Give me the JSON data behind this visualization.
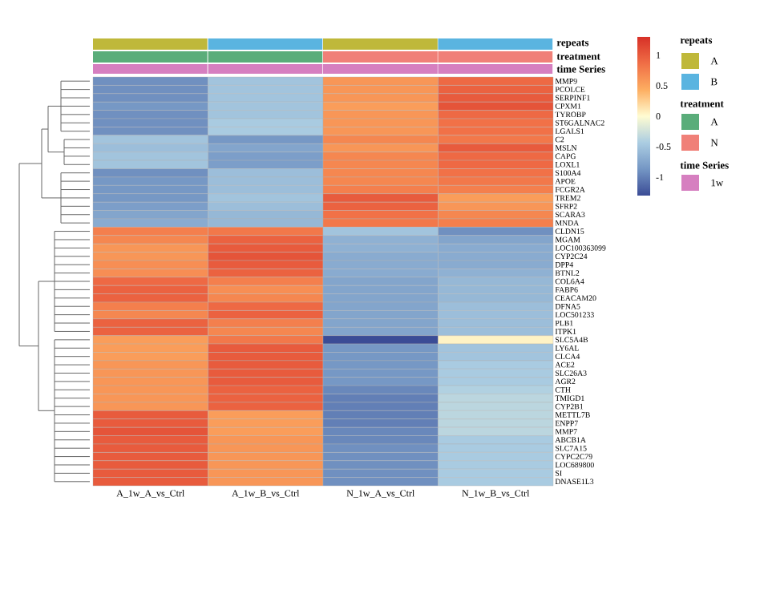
{
  "chart_data": {
    "type": "heatmap",
    "categories": [
      "A_1w_A_vs_Ctrl",
      "A_1w_B_vs_Ctrl",
      "N_1w_A_vs_Ctrl",
      "N_1w_B_vs_Ctrl"
    ],
    "y_categories": [
      "MMP9",
      "PCOLCE",
      "SERPINF1",
      "CPXM1",
      "TYROBP",
      "ST6GALNAC2",
      "LGALS1",
      "C2",
      "MSLN",
      "CAPG",
      "LOXL1",
      "S100A4",
      "APOE",
      "FCGR2A",
      "TREM2",
      "SFRP2",
      "SCARA3",
      "MNDA",
      "CLDN15",
      "MGAM",
      "LOC100363099",
      "CYP2C24",
      "DPP4",
      "BTNL2",
      "COL6A4",
      "FABP6",
      "CEACAM20",
      "DFNA5",
      "LOC501233",
      "PLB1",
      "ITPK1",
      "SLC5A4B",
      "LY6AL",
      "CLCA4",
      "ACE2",
      "SLC26A3",
      "AGR2",
      "CTH",
      "TMIGD1",
      "CYP2B1",
      "METTL7B",
      "ENPP7",
      "MMP7",
      "ABCB1A",
      "SLC7A15",
      "CYPC2C79",
      "LOC689800",
      "SI",
      "DNASE1L3"
    ],
    "cells": [
      [
        -0.9,
        -0.5,
        0.6,
        0.9
      ],
      [
        -0.9,
        -0.5,
        0.6,
        0.95
      ],
      [
        -0.9,
        -0.5,
        0.6,
        1.0
      ],
      [
        -0.85,
        -0.5,
        0.55,
        1.05
      ],
      [
        -0.9,
        -0.5,
        0.6,
        0.9
      ],
      [
        -0.9,
        -0.45,
        0.6,
        0.85
      ],
      [
        -0.9,
        -0.45,
        0.6,
        0.85
      ],
      [
        -0.5,
        -0.85,
        0.7,
        0.8
      ],
      [
        -0.55,
        -0.75,
        0.6,
        1.0
      ],
      [
        -0.5,
        -0.8,
        0.7,
        0.9
      ],
      [
        -0.5,
        -0.8,
        0.7,
        0.9
      ],
      [
        -0.9,
        -0.55,
        0.7,
        0.85
      ],
      [
        -0.85,
        -0.55,
        0.7,
        0.8
      ],
      [
        -0.85,
        -0.55,
        0.75,
        0.75
      ],
      [
        -0.85,
        -0.5,
        1.0,
        0.55
      ],
      [
        -0.8,
        -0.55,
        0.95,
        0.6
      ],
      [
        -0.75,
        -0.6,
        0.85,
        0.7
      ],
      [
        -0.7,
        -0.6,
        0.8,
        0.75
      ],
      [
        0.75,
        0.8,
        -0.5,
        -0.9
      ],
      [
        0.7,
        0.95,
        -0.65,
        -0.75
      ],
      [
        0.6,
        1.0,
        -0.65,
        -0.7
      ],
      [
        0.6,
        1.05,
        -0.7,
        -0.7
      ],
      [
        0.65,
        1.0,
        -0.7,
        -0.7
      ],
      [
        0.65,
        0.95,
        -0.7,
        -0.65
      ],
      [
        0.9,
        0.75,
        -0.75,
        -0.6
      ],
      [
        0.95,
        0.65,
        -0.75,
        -0.6
      ],
      [
        0.95,
        0.7,
        -0.75,
        -0.6
      ],
      [
        0.75,
        0.9,
        -0.75,
        -0.55
      ],
      [
        0.7,
        0.95,
        -0.75,
        -0.55
      ],
      [
        0.95,
        0.75,
        -0.75,
        -0.55
      ],
      [
        0.95,
        0.7,
        -0.75,
        -0.55
      ],
      [
        0.55,
        0.8,
        -1.3,
        0.05
      ],
      [
        0.55,
        1.0,
        -0.85,
        -0.5
      ],
      [
        0.55,
        1.0,
        -0.85,
        -0.5
      ],
      [
        0.6,
        1.0,
        -0.85,
        -0.45
      ],
      [
        0.6,
        1.0,
        -0.85,
        -0.45
      ],
      [
        0.6,
        1.0,
        -0.85,
        -0.45
      ],
      [
        0.6,
        0.95,
        -0.95,
        -0.4
      ],
      [
        0.6,
        0.95,
        -1.0,
        -0.35
      ],
      [
        0.6,
        0.95,
        -1.0,
        -0.35
      ],
      [
        1.0,
        0.55,
        -1.0,
        -0.35
      ],
      [
        1.0,
        0.55,
        -1.0,
        -0.35
      ],
      [
        1.05,
        0.55,
        -0.95,
        -0.35
      ],
      [
        1.0,
        0.6,
        -0.95,
        -0.45
      ],
      [
        1.0,
        0.6,
        -0.9,
        -0.45
      ],
      [
        1.0,
        0.6,
        -0.9,
        -0.45
      ],
      [
        1.0,
        0.6,
        -0.9,
        -0.45
      ],
      [
        1.0,
        0.6,
        -0.9,
        -0.45
      ],
      [
        1.0,
        0.6,
        -0.9,
        -0.45
      ]
    ],
    "clim": [
      -1.3,
      1.3
    ],
    "cticks": [
      -1,
      -0.5,
      0,
      0.5,
      1
    ],
    "annotations": [
      "repeats",
      "treatment",
      "time Series",
      "repeats",
      "A",
      "B",
      "treatment",
      "A",
      "N",
      "time Series",
      "1w"
    ]
  }
}
